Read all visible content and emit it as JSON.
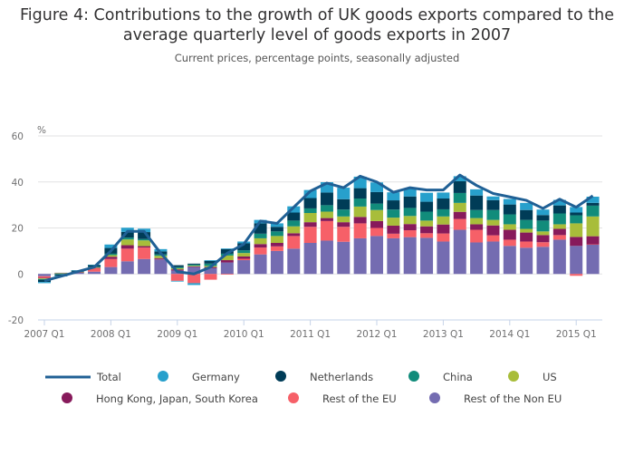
{
  "chart_data": {
    "type": "bar",
    "stacked": true,
    "title": "Figure 4: Contributions to the growth of UK goods exports compared to the average quarterly level of goods exports in 2007",
    "subtitle": "Current prices, percentage points, seasonally adjusted",
    "ylabel": "%",
    "ylim": [
      -20,
      60
    ],
    "yticks": [
      60,
      40,
      20,
      0,
      -20
    ],
    "grid": true,
    "legend_position": "bottom",
    "xtick_labels": [
      "2007 Q1",
      "2008 Q1",
      "2009 Q1",
      "2010 Q1",
      "2011 Q1",
      "2012 Q1",
      "2013 Q1",
      "2014 Q1",
      "2015 Q1"
    ],
    "categories": [
      "2007 Q1",
      "2007 Q2",
      "2007 Q3",
      "2007 Q4",
      "2008 Q1",
      "2008 Q2",
      "2008 Q3",
      "2008 Q4",
      "2009 Q1",
      "2009 Q2",
      "2009 Q3",
      "2009 Q4",
      "2010 Q1",
      "2010 Q2",
      "2010 Q3",
      "2010 Q4",
      "2011 Q1",
      "2011 Q2",
      "2011 Q3",
      "2011 Q4",
      "2012 Q1",
      "2012 Q2",
      "2012 Q3",
      "2012 Q4",
      "2013 Q1",
      "2013 Q2",
      "2013 Q3",
      "2013 Q4",
      "2014 Q1",
      "2014 Q2",
      "2014 Q3",
      "2014 Q4",
      "2015 Q1",
      "2015 Q2"
    ],
    "line": {
      "name": "Total",
      "color": "#206095",
      "values": [
        -3,
        -1,
        1,
        3,
        10,
        18.5,
        18.5,
        9,
        1,
        0,
        3,
        9,
        13,
        23,
        22,
        29,
        36,
        39.5,
        37.5,
        42.5,
        40,
        35.5,
        37.5,
        36.5,
        36.5,
        43,
        38.5,
        35,
        33.5,
        32,
        28.5,
        32.5,
        29,
        34
      ]
    },
    "series": [
      {
        "name": "Rest of the Non EU",
        "color": "#746cb1",
        "values": [
          -1,
          0.5,
          0.5,
          1,
          3,
          5.5,
          6.5,
          6.5,
          1.5,
          3,
          2.5,
          5,
          6,
          8.5,
          10,
          11,
          13.5,
          14.5,
          14,
          15.5,
          16.5,
          15.5,
          16,
          15.7,
          14.1,
          19.2,
          13.7,
          14.1,
          12.2,
          11.4,
          11.8,
          14.9,
          12.2,
          12.9
        ]
      },
      {
        "name": "Rest of the EU",
        "color": "#f66068",
        "values": [
          -0.7,
          0,
          0.2,
          1.5,
          3.5,
          5.5,
          5,
          0,
          -3,
          -4,
          -2.5,
          -0.3,
          0.6,
          3,
          2,
          5.5,
          7,
          8.5,
          6.5,
          6.5,
          3.5,
          2,
          3,
          2,
          3.5,
          4.7,
          5.5,
          2.7,
          2.7,
          2.7,
          2,
          2,
          -0.8,
          0
        ]
      },
      {
        "name": "Hong Kong, Japan, South Korea",
        "color": "#871a5b",
        "values": [
          -0.2,
          0,
          0.1,
          0.2,
          1,
          1.5,
          0.6,
          0.4,
          0.5,
          0.3,
          0.5,
          1,
          1,
          1.5,
          1.5,
          1.2,
          2,
          1.3,
          2,
          2.8,
          3,
          3.5,
          2.7,
          3,
          3.9,
          3.1,
          2.4,
          4.3,
          4.3,
          3.9,
          3.1,
          2.7,
          3.9,
          3.5
        ]
      },
      {
        "name": "US",
        "color": "#a8bd3a",
        "values": [
          -0.3,
          0,
          0.1,
          0.2,
          0.7,
          2.5,
          2.5,
          1,
          0.5,
          0.3,
          0.5,
          2,
          1.5,
          2.5,
          3,
          3,
          4,
          2.8,
          2.5,
          4.5,
          4.8,
          3.5,
          3.5,
          2.5,
          3.5,
          3.9,
          2.7,
          2.4,
          2.4,
          1.6,
          1.6,
          2,
          5.9,
          8.6
        ]
      },
      {
        "name": "China",
        "color": "#118c7b",
        "values": [
          -0.3,
          -0.3,
          0.1,
          0.2,
          0.6,
          0.8,
          0.6,
          0.6,
          0.5,
          0.5,
          1,
          0.8,
          1.2,
          2,
          2,
          2.5,
          2,
          2.8,
          3,
          3.5,
          2.8,
          3.5,
          3.5,
          3.9,
          3.1,
          4.3,
          3.5,
          4.3,
          4.3,
          3.9,
          4.7,
          4.7,
          3.5,
          4.7
        ]
      },
      {
        "name": "Netherlands",
        "color": "#003c57",
        "values": [
          -1,
          -0.5,
          0.5,
          0.8,
          2.5,
          2.5,
          3,
          1.3,
          0.8,
          0.4,
          1.2,
          2,
          3,
          4.5,
          2,
          3.5,
          4.5,
          5.5,
          4.5,
          4.5,
          5,
          4,
          5,
          4.3,
          4.7,
          5.1,
          6.3,
          4.3,
          4.3,
          4.3,
          2.4,
          3.5,
          1.2,
          1.2
        ]
      },
      {
        "name": "Germany",
        "color": "#27a0cc",
        "values": [
          -0.5,
          -0.3,
          0.1,
          0.1,
          1.5,
          1.8,
          1.5,
          1,
          -0.3,
          -0.8,
          0.3,
          0.3,
          0.8,
          1.5,
          1.5,
          2.7,
          3.5,
          4.5,
          5,
          5,
          4.2,
          3.5,
          3.5,
          3.9,
          2.6,
          2.2,
          2.7,
          1.6,
          2.4,
          3.1,
          2.4,
          2.4,
          2.4,
          2.7
        ]
      }
    ],
    "legend_order": [
      "Total",
      "Germany",
      "Netherlands",
      "China",
      "US",
      "Hong Kong, Japan, South Korea",
      "Rest of the EU",
      "Rest of the Non EU"
    ]
  }
}
